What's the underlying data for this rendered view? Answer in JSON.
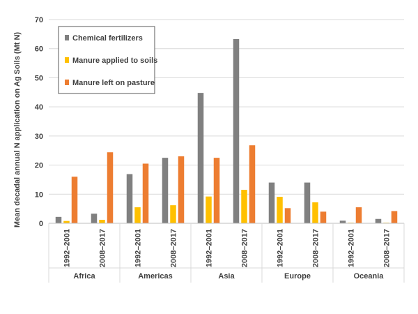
{
  "chart_data": {
    "type": "bar",
    "title": "",
    "xlabel": "",
    "ylabel": "Mean decadal annual  N application on Ag Soils (Mt N)",
    "ylim": [
      0,
      70
    ],
    "yticks": [
      "0",
      "10",
      "20",
      "30",
      "40",
      "50",
      "60",
      "70"
    ],
    "grid": true,
    "legend_position": "top-left",
    "periods": [
      "1992–2001",
      "2008–2017"
    ],
    "groups": [
      "Africa",
      "Americas",
      "Asia",
      "Europe",
      "Oceania"
    ],
    "series": [
      {
        "name": "Chemical fertilizers",
        "color": "#808080",
        "values": [
          2.2,
          3.3,
          16.9,
          22.5,
          44.8,
          63.3,
          14.0,
          14.0,
          0.9,
          1.5
        ]
      },
      {
        "name": "Manure applied to soils",
        "color": "#FFC000",
        "values": [
          0.8,
          1.2,
          5.5,
          6.2,
          9.2,
          11.5,
          9.1,
          7.2,
          0.2,
          0.2
        ]
      },
      {
        "name": "Manure left on pasture",
        "color": "#ED7D31",
        "values": [
          16.0,
          24.4,
          20.5,
          23.0,
          22.5,
          26.8,
          5.2,
          4.0,
          5.5,
          4.2
        ]
      }
    ]
  }
}
